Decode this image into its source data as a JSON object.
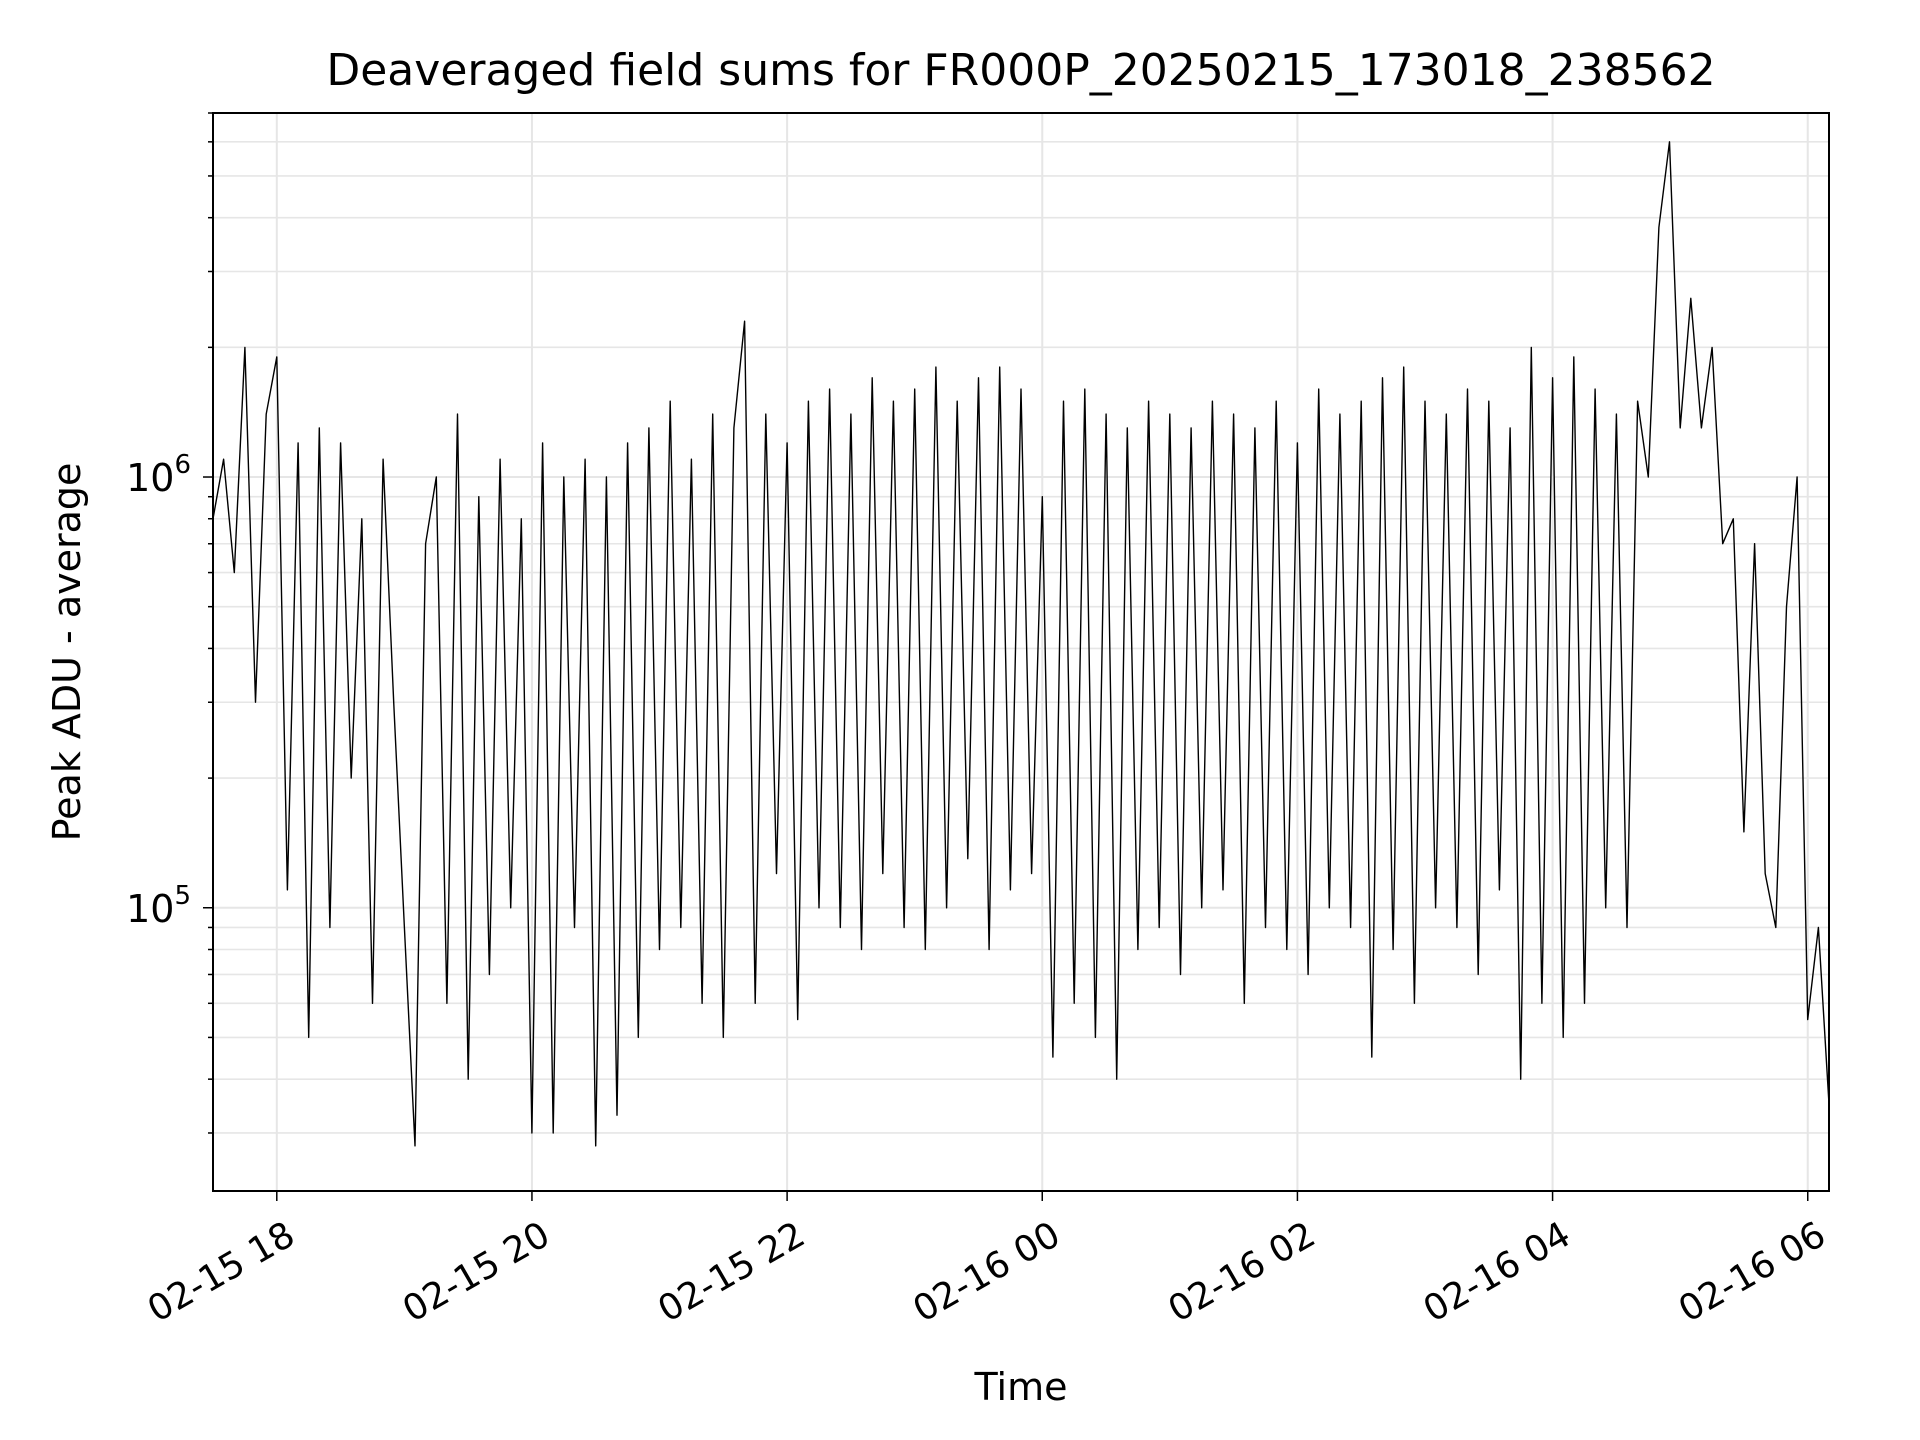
{
  "chart_data": {
    "type": "line",
    "title": "Deaveraged field sums for FR000P_20250215_173018_238562",
    "xlabel": "Time",
    "ylabel": "Peak ADU - average",
    "xlim": [
      "2025-02-15 17:30",
      "2025-02-16 06:10"
    ],
    "ylim": [
      22000,
      7000000
    ],
    "yscale": "log",
    "grid": true,
    "grid_color": "#e6e6e6",
    "line_color": "#000000",
    "x_ticks": [
      {
        "label": "02-15 18",
        "value": "2025-02-15 18:00"
      },
      {
        "label": "02-15 20",
        "value": "2025-02-15 20:00"
      },
      {
        "label": "02-15 22",
        "value": "2025-02-15 22:00"
      },
      {
        "label": "02-16 00",
        "value": "2025-02-16 00:00"
      },
      {
        "label": "02-16 02",
        "value": "2025-02-16 02:00"
      },
      {
        "label": "02-16 04",
        "value": "2025-02-16 04:00"
      },
      {
        "label": "02-16 06",
        "value": "2025-02-16 06:00"
      }
    ],
    "y_ticks": [
      {
        "base": "10",
        "exp": "5",
        "value": 100000
      },
      {
        "base": "10",
        "exp": "6",
        "value": 1000000
      }
    ],
    "series": [
      {
        "x": [
          "2025-02-15 17:30",
          "2025-02-15 17:35",
          "2025-02-15 17:40",
          "2025-02-15 17:45",
          "2025-02-15 17:50",
          "2025-02-15 17:55",
          "2025-02-15 18:00",
          "2025-02-15 18:05",
          "2025-02-15 18:10",
          "2025-02-15 18:15",
          "2025-02-15 18:20",
          "2025-02-15 18:25",
          "2025-02-15 18:30",
          "2025-02-15 18:35",
          "2025-02-15 18:40",
          "2025-02-15 18:45",
          "2025-02-15 18:50",
          "2025-02-15 18:55",
          "2025-02-15 19:00",
          "2025-02-15 19:05",
          "2025-02-15 19:10",
          "2025-02-15 19:15",
          "2025-02-15 19:20",
          "2025-02-15 19:25",
          "2025-02-15 19:30",
          "2025-02-15 19:35",
          "2025-02-15 19:40",
          "2025-02-15 19:45",
          "2025-02-15 19:50",
          "2025-02-15 19:55",
          "2025-02-15 20:00",
          "2025-02-15 20:05",
          "2025-02-15 20:10",
          "2025-02-15 20:15",
          "2025-02-15 20:20",
          "2025-02-15 20:25",
          "2025-02-15 20:30",
          "2025-02-15 20:35",
          "2025-02-15 20:40",
          "2025-02-15 20:45",
          "2025-02-15 20:50",
          "2025-02-15 20:55",
          "2025-02-15 21:00",
          "2025-02-15 21:05",
          "2025-02-15 21:10",
          "2025-02-15 21:15",
          "2025-02-15 21:20",
          "2025-02-15 21:25",
          "2025-02-15 21:30",
          "2025-02-15 21:35",
          "2025-02-15 21:40",
          "2025-02-15 21:45",
          "2025-02-15 21:50",
          "2025-02-15 21:55",
          "2025-02-15 22:00",
          "2025-02-15 22:05",
          "2025-02-15 22:10",
          "2025-02-15 22:15",
          "2025-02-15 22:20",
          "2025-02-15 22:25",
          "2025-02-15 22:30",
          "2025-02-15 22:35",
          "2025-02-15 22:40",
          "2025-02-15 22:45",
          "2025-02-15 22:50",
          "2025-02-15 22:55",
          "2025-02-15 23:00",
          "2025-02-15 23:05",
          "2025-02-15 23:10",
          "2025-02-15 23:15",
          "2025-02-15 23:20",
          "2025-02-15 23:25",
          "2025-02-15 23:30",
          "2025-02-15 23:35",
          "2025-02-15 23:40",
          "2025-02-15 23:45",
          "2025-02-15 23:50",
          "2025-02-15 23:55",
          "2025-02-16 00:00",
          "2025-02-16 00:05",
          "2025-02-16 00:10",
          "2025-02-16 00:15",
          "2025-02-16 00:20",
          "2025-02-16 00:25",
          "2025-02-16 00:30",
          "2025-02-16 00:35",
          "2025-02-16 00:40",
          "2025-02-16 00:45",
          "2025-02-16 00:50",
          "2025-02-16 00:55",
          "2025-02-16 01:00",
          "2025-02-16 01:05",
          "2025-02-16 01:10",
          "2025-02-16 01:15",
          "2025-02-16 01:20",
          "2025-02-16 01:25",
          "2025-02-16 01:30",
          "2025-02-16 01:35",
          "2025-02-16 01:40",
          "2025-02-16 01:45",
          "2025-02-16 01:50",
          "2025-02-16 01:55",
          "2025-02-16 02:00",
          "2025-02-16 02:05",
          "2025-02-16 02:10",
          "2025-02-16 02:15",
          "2025-02-16 02:20",
          "2025-02-16 02:25",
          "2025-02-16 02:30",
          "2025-02-16 02:35",
          "2025-02-16 02:40",
          "2025-02-16 02:45",
          "2025-02-16 02:50",
          "2025-02-16 02:55",
          "2025-02-16 03:00",
          "2025-02-16 03:05",
          "2025-02-16 03:10",
          "2025-02-16 03:15",
          "2025-02-16 03:20",
          "2025-02-16 03:25",
          "2025-02-16 03:30",
          "2025-02-16 03:35",
          "2025-02-16 03:40",
          "2025-02-16 03:45",
          "2025-02-16 03:50",
          "2025-02-16 03:55",
          "2025-02-16 04:00",
          "2025-02-16 04:05",
          "2025-02-16 04:10",
          "2025-02-16 04:15",
          "2025-02-16 04:20",
          "2025-02-16 04:25",
          "2025-02-16 04:30",
          "2025-02-16 04:35",
          "2025-02-16 04:40",
          "2025-02-16 04:45",
          "2025-02-16 04:50",
          "2025-02-16 04:55",
          "2025-02-16 05:00",
          "2025-02-16 05:05",
          "2025-02-16 05:10",
          "2025-02-16 05:15",
          "2025-02-16 05:20",
          "2025-02-16 05:25",
          "2025-02-16 05:30",
          "2025-02-16 05:35",
          "2025-02-16 05:40",
          "2025-02-16 05:45",
          "2025-02-16 05:50",
          "2025-02-16 05:55",
          "2025-02-16 06:00",
          "2025-02-16 06:05",
          "2025-02-16 06:10"
        ],
        "y": [
          800000,
          1100000,
          600000,
          2000000,
          300000,
          1400000,
          1900000,
          110000,
          1200000,
          50000,
          1300000,
          90000,
          1200000,
          200000,
          800000,
          60000,
          1100000,
          300000,
          90000,
          28000,
          700000,
          1000000,
          60000,
          1400000,
          40000,
          900000,
          70000,
          1100000,
          100000,
          800000,
          30000,
          1200000,
          30000,
          1000000,
          90000,
          1100000,
          28000,
          1000000,
          33000,
          1200000,
          50000,
          1300000,
          80000,
          1500000,
          90000,
          1100000,
          60000,
          1400000,
          50000,
          1300000,
          2300000,
          60000,
          1400000,
          120000,
          1200000,
          55000,
          1500000,
          100000,
          1600000,
          90000,
          1400000,
          80000,
          1700000,
          120000,
          1500000,
          90000,
          1600000,
          80000,
          1800000,
          100000,
          1500000,
          130000,
          1700000,
          80000,
          1800000,
          110000,
          1600000,
          120000,
          900000,
          45000,
          1500000,
          60000,
          1600000,
          50000,
          1400000,
          40000,
          1300000,
          80000,
          1500000,
          90000,
          1400000,
          70000,
          1300000,
          100000,
          1500000,
          110000,
          1400000,
          60000,
          1300000,
          90000,
          1500000,
          80000,
          1200000,
          70000,
          1600000,
          100000,
          1400000,
          90000,
          1500000,
          45000,
          1700000,
          80000,
          1800000,
          60000,
          1500000,
          100000,
          1400000,
          90000,
          1600000,
          70000,
          1500000,
          110000,
          1300000,
          40000,
          2000000,
          60000,
          1700000,
          50000,
          1900000,
          60000,
          1600000,
          100000,
          1400000,
          90000,
          1500000,
          1000000,
          3800000,
          6000000,
          1300000,
          2600000,
          1300000,
          2000000,
          700000,
          800000,
          150000,
          700000,
          120000,
          90000,
          500000,
          1000000,
          55000,
          90000,
          35000
        ]
      }
    ]
  }
}
